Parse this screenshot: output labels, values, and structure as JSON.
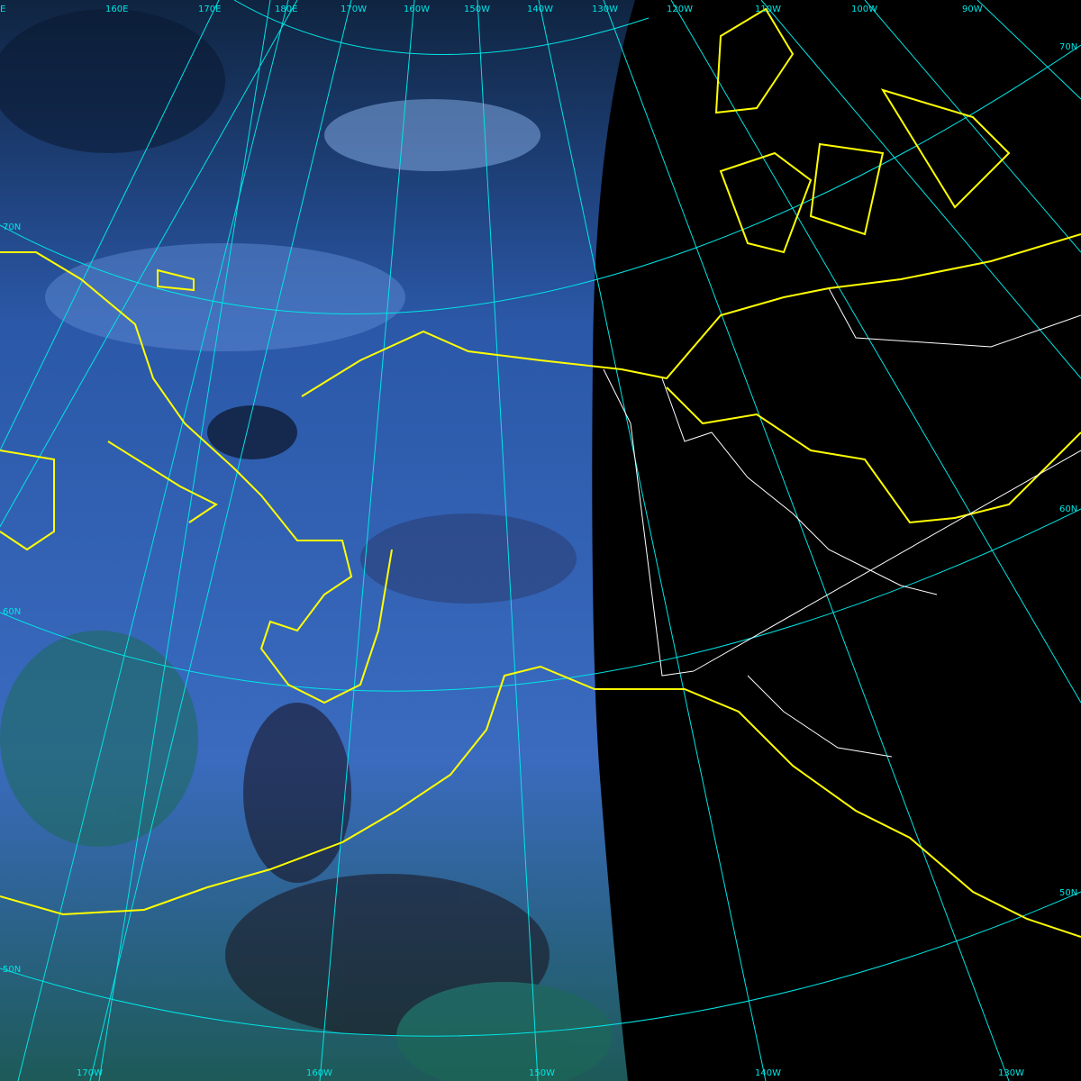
{
  "map": {
    "type": "satellite composite image with graticule and coastlines",
    "colors": {
      "graticule": "#00e5e5",
      "coastline": "#ffff00",
      "borders": "#ffffff",
      "no_data": "#000000"
    },
    "top_longitude_labels": [
      "E",
      "160E",
      "170E",
      "180E",
      "170W",
      "160W",
      "150W",
      "140W",
      "130W",
      "120W",
      "110W",
      "100W",
      "90W"
    ],
    "bottom_longitude_labels": [
      "170W",
      "160W",
      "150W",
      "140W",
      "130W"
    ],
    "left_latitude_labels": [
      "70N",
      "60N",
      "50N"
    ],
    "right_latitude_labels": [
      "70N",
      "60N",
      "50N"
    ]
  }
}
